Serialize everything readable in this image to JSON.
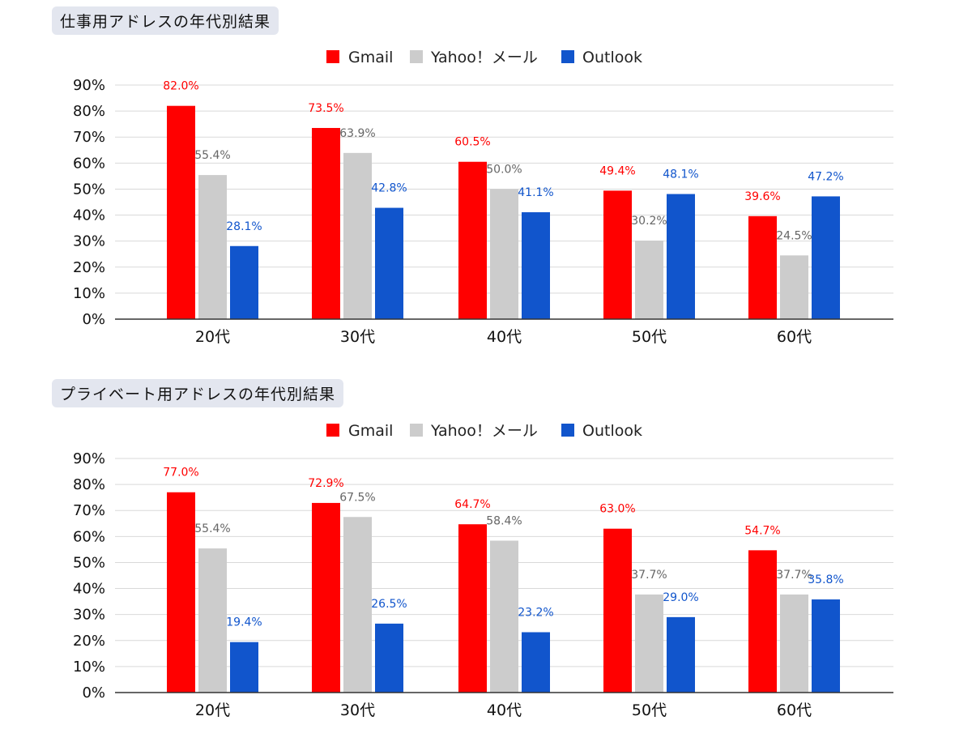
{
  "charts": [
    {
      "title": "仕事用アドレスの年代別結果"
    },
    {
      "title": "プライベート用アドレスの年代別結果"
    }
  ],
  "legend": [
    "Gmail",
    "Yahoo！メール",
    "Outlook"
  ],
  "colors": {
    "gmail": "#ff0000",
    "yahoo": "#cccccc",
    "outlook": "#1155cc",
    "yahoo_label": "#666666",
    "gridline": "#d9d9d9",
    "axis": "#333333"
  },
  "chart_data": [
    {
      "type": "bar",
      "title": "仕事用アドレスの年代別結果",
      "categories": [
        "20代",
        "30代",
        "40代",
        "50代",
        "60代"
      ],
      "series": [
        {
          "name": "Gmail",
          "values": [
            82.0,
            73.5,
            60.5,
            49.4,
            39.6
          ],
          "labels": [
            "82.0%",
            "73.5%",
            "60.5%",
            "49.4%",
            "39.6%"
          ]
        },
        {
          "name": "Yahoo！メール",
          "values": [
            55.4,
            63.9,
            50.0,
            30.2,
            24.5
          ],
          "labels": [
            "55.4%",
            "63.9%",
            "50.0%",
            "30.2%",
            "24.5%"
          ]
        },
        {
          "name": "Outlook",
          "values": [
            28.1,
            42.8,
            41.1,
            48.1,
            47.2
          ],
          "labels": [
            "28.1%",
            "42.8%",
            "41.1%",
            "48.1%",
            "47.2%"
          ]
        }
      ],
      "ylim": [
        0,
        90
      ],
      "yticks": [
        "0%",
        "10%",
        "20%",
        "30%",
        "40%",
        "50%",
        "60%",
        "70%",
        "80%",
        "90%"
      ],
      "xlabel": "",
      "ylabel": "",
      "legend_position": "top-center",
      "grid": true
    },
    {
      "type": "bar",
      "title": "プライベート用アドレスの年代別結果",
      "categories": [
        "20代",
        "30代",
        "40代",
        "50代",
        "60代"
      ],
      "series": [
        {
          "name": "Gmail",
          "values": [
            77.0,
            72.9,
            64.7,
            63.0,
            54.7
          ],
          "labels": [
            "77.0%",
            "72.9%",
            "64.7%",
            "63.0%",
            "54.7%"
          ]
        },
        {
          "name": "Yahoo！メール",
          "values": [
            55.4,
            67.5,
            58.4,
            37.7,
            37.7
          ],
          "labels": [
            "55.4%",
            "67.5%",
            "58.4%",
            "37.7%",
            "37.7%"
          ]
        },
        {
          "name": "Outlook",
          "values": [
            19.4,
            26.5,
            23.2,
            29.0,
            35.8
          ],
          "labels": [
            "19.4%",
            "26.5%",
            "23.2%",
            "29.0%",
            "35.8%"
          ]
        }
      ],
      "ylim": [
        0,
        90
      ],
      "yticks": [
        "0%",
        "10%",
        "20%",
        "30%",
        "40%",
        "50%",
        "60%",
        "70%",
        "80%",
        "90%"
      ],
      "xlabel": "",
      "ylabel": "",
      "legend_position": "top-center",
      "grid": true
    }
  ]
}
